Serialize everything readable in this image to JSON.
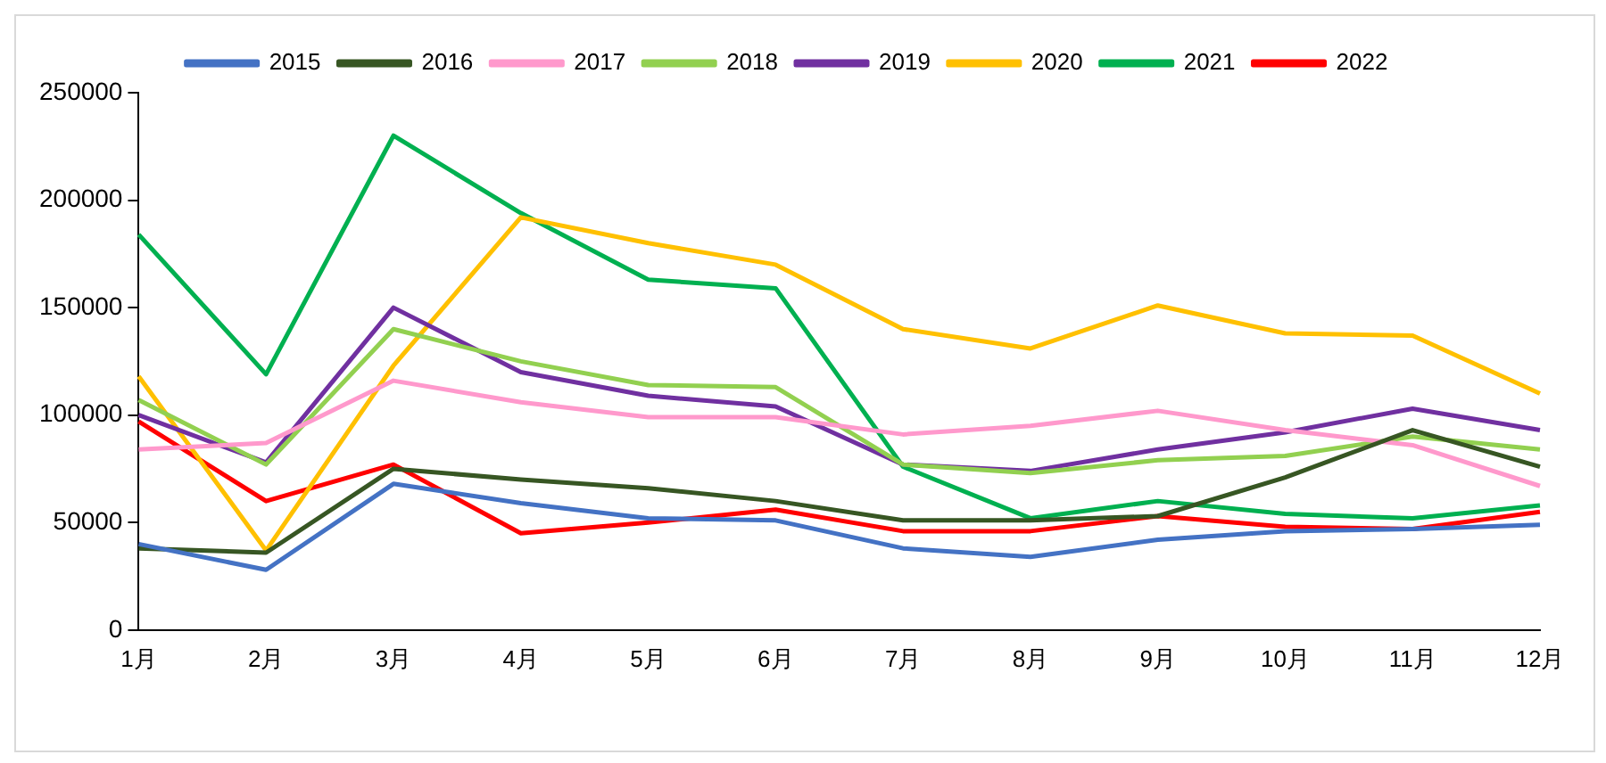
{
  "chart_data": {
    "type": "line",
    "categories": [
      "1月",
      "2月",
      "3月",
      "4月",
      "5月",
      "6月",
      "7月",
      "8月",
      "9月",
      "10月",
      "11月",
      "12月"
    ],
    "series": [
      {
        "name": "2015",
        "color": "#4472c4",
        "values": [
          40000,
          28000,
          68000,
          59000,
          52000,
          51000,
          38000,
          34000,
          42000,
          46000,
          47000,
          49000
        ]
      },
      {
        "name": "2016",
        "color": "#375623",
        "values": [
          38000,
          36000,
          75000,
          70000,
          66000,
          60000,
          51000,
          51000,
          53000,
          71000,
          93000,
          76000
        ]
      },
      {
        "name": "2017",
        "color": "#ff99cc",
        "values": [
          84000,
          87000,
          116000,
          106000,
          99000,
          99000,
          91000,
          95000,
          102000,
          93000,
          86000,
          67000
        ]
      },
      {
        "name": "2018",
        "color": "#92d050",
        "values": [
          107000,
          77000,
          140000,
          125000,
          114000,
          113000,
          77000,
          73000,
          79000,
          81000,
          90000,
          84000
        ]
      },
      {
        "name": "2019",
        "color": "#7030a0",
        "values": [
          100000,
          78000,
          150000,
          120000,
          109000,
          104000,
          77000,
          74000,
          84000,
          92000,
          103000,
          93000
        ]
      },
      {
        "name": "2020",
        "color": "#ffc000",
        "values": [
          118000,
          37000,
          123000,
          192000,
          180000,
          170000,
          140000,
          131000,
          151000,
          138000,
          137000,
          110000
        ]
      },
      {
        "name": "2021",
        "color": "#00b050",
        "values": [
          184000,
          119000,
          230000,
          194000,
          163000,
          159000,
          76000,
          52000,
          60000,
          54000,
          52000,
          58000
        ]
      },
      {
        "name": "2022",
        "color": "#ff0000",
        "values": [
          97000,
          60000,
          77000,
          45000,
          50000,
          56000,
          46000,
          46000,
          53000,
          48000,
          47000,
          55000
        ]
      }
    ],
    "ylim": [
      0,
      250000
    ],
    "yticks": [
      0,
      50000,
      100000,
      150000,
      200000,
      250000
    ],
    "grid": false,
    "legend": "top",
    "marker": "none",
    "line_style": "solid"
  }
}
